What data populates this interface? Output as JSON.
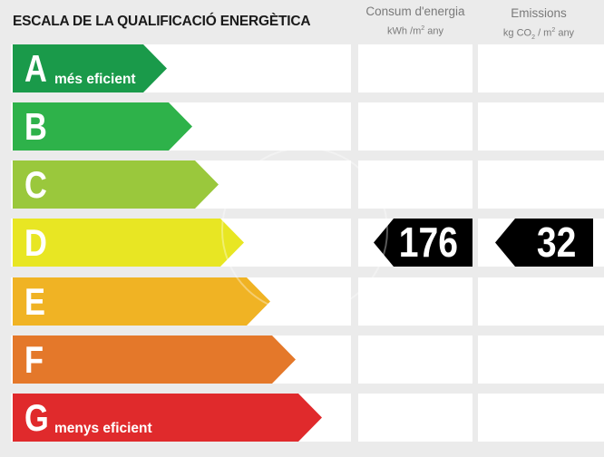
{
  "title": "ESCALA DE LA QUALIFICACIÓ ENERGÈTICA",
  "columns": {
    "energy": {
      "label": "Consum d'energia",
      "unit_a": "kWh /m",
      "unit_sup": "2",
      "unit_b": " any"
    },
    "emissions": {
      "label": "Emissions",
      "unit_a": "kg CO",
      "unit_sub": "2",
      "unit_c": " / m",
      "unit_sup": "2",
      "unit_d": " any"
    }
  },
  "ratings": [
    {
      "letter": "A",
      "label": "més eficient",
      "color": "#1a9a4a"
    },
    {
      "letter": "B",
      "label": "",
      "color": "#2eb24a"
    },
    {
      "letter": "C",
      "label": "",
      "color": "#9ac83c"
    },
    {
      "letter": "D",
      "label": "",
      "color": "#e8e623"
    },
    {
      "letter": "E",
      "label": "",
      "color": "#f0b324"
    },
    {
      "letter": "F",
      "label": "",
      "color": "#e4782a"
    },
    {
      "letter": "G",
      "label": "menys eficient",
      "color": "#e02a2c"
    }
  ],
  "indicators": {
    "row_letter": "D",
    "energy_value": "176",
    "emissions_value": "32"
  }
}
